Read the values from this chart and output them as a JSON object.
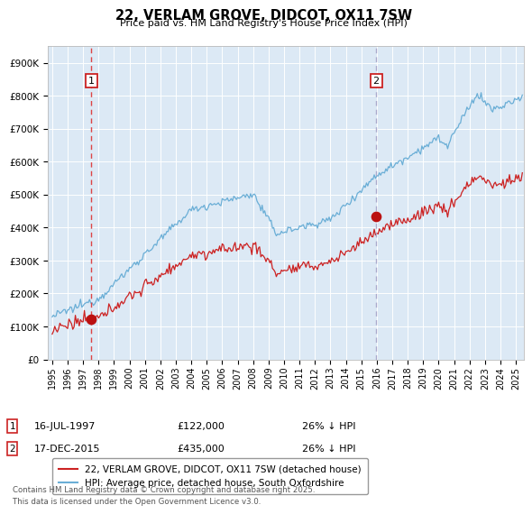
{
  "title": "22, VERLAM GROVE, DIDCOT, OX11 7SW",
  "subtitle": "Price paid vs. HM Land Registry's House Price Index (HPI)",
  "background_color": "#dce9f5",
  "fig_bg_color": "#ffffff",
  "legend_label_red": "22, VERLAM GROVE, DIDCOT, OX11 7SW (detached house)",
  "legend_label_blue": "HPI: Average price, detached house, South Oxfordshire",
  "point1_date": 1997.54,
  "point1_price": 122000,
  "point2_date": 2015.96,
  "point2_price": 435000,
  "footnote": "Contains HM Land Registry data © Crown copyright and database right 2025.\nThis data is licensed under the Open Government Licence v3.0.",
  "ylim": [
    0,
    950000
  ],
  "xlim": [
    1994.7,
    2025.5
  ]
}
